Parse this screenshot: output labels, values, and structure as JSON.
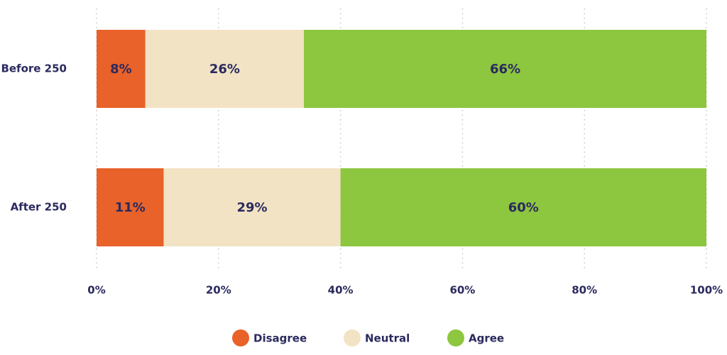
{
  "chart_data": {
    "type": "bar",
    "orientation": "horizontal",
    "stacked": true,
    "title": "",
    "xlabel": "",
    "ylabel": "",
    "categories": [
      "Before 250",
      "After 250"
    ],
    "series": [
      {
        "name": "Disagree",
        "color": "#e8622a",
        "values": [
          8,
          11
        ],
        "labels": [
          "8%",
          "11%"
        ]
      },
      {
        "name": "Neutral",
        "color": "#f2e3c4",
        "values": [
          26,
          29
        ],
        "labels": [
          "26%",
          "29%"
        ]
      },
      {
        "name": "Agree",
        "color": "#8dc63f",
        "values": [
          66,
          60
        ],
        "labels": [
          "66%",
          "60%"
        ]
      }
    ],
    "xlim": [
      0,
      100
    ],
    "xticks": [
      0,
      20,
      40,
      60,
      80,
      100
    ],
    "xtick_labels": [
      "0%",
      "20%",
      "40%",
      "60%",
      "80%",
      "100%"
    ],
    "grid": "vertical-dotted",
    "legend_position": "bottom-center",
    "text_color": "#2b2a5e"
  }
}
